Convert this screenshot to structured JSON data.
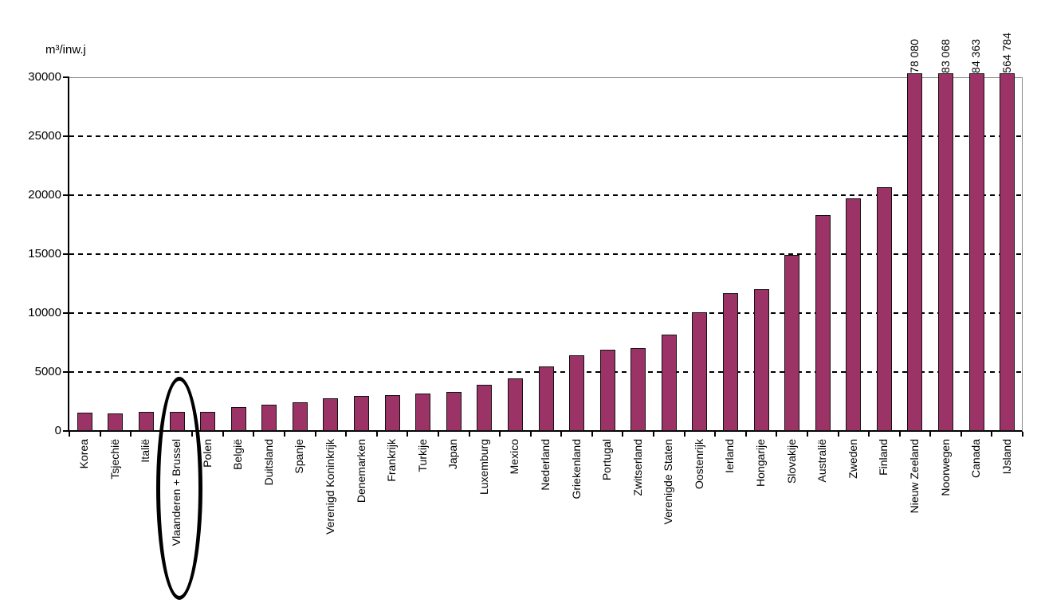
{
  "chart_data": {
    "type": "bar",
    "title": "",
    "xlabel": "",
    "ylabel": "m³/inw.j",
    "ylim": [
      0,
      30000
    ],
    "yticks": [
      0,
      5000,
      10000,
      15000,
      20000,
      25000,
      30000
    ],
    "ytick_labels": [
      "0",
      "5000",
      "10000",
      "15000",
      "20000",
      "25000",
      "30000"
    ],
    "grid": "horizontal-dashed",
    "legend": "none",
    "bar_color": "#9B3367",
    "bars": [
      {
        "category": "Korea",
        "value": 1550
      },
      {
        "category": "Tsjechië",
        "value": 1500
      },
      {
        "category": "Italië",
        "value": 1650
      },
      {
        "category": "Vlaanderen + Brussel",
        "value": 1600,
        "highlighted": true
      },
      {
        "category": "Polen",
        "value": 1600
      },
      {
        "category": "België",
        "value": 2000
      },
      {
        "category": "Duitsland",
        "value": 2200
      },
      {
        "category": "Spanje",
        "value": 2450
      },
      {
        "category": "Verenigd Koninkrijk",
        "value": 2800
      },
      {
        "category": "Denemarken",
        "value": 2950
      },
      {
        "category": "Frankrijk",
        "value": 3050
      },
      {
        "category": "Turkije",
        "value": 3150
      },
      {
        "category": "Japan",
        "value": 3300
      },
      {
        "category": "Luxemburg",
        "value": 3900
      },
      {
        "category": "Mexico",
        "value": 4450
      },
      {
        "category": "Nederland",
        "value": 5500
      },
      {
        "category": "Griekenland",
        "value": 6450
      },
      {
        "category": "Portugal",
        "value": 6900
      },
      {
        "category": "Zwitserland",
        "value": 7000
      },
      {
        "category": "Verenigde Staten",
        "value": 8150
      },
      {
        "category": "Oostenrijk",
        "value": 10100
      },
      {
        "category": "Ierland",
        "value": 11700
      },
      {
        "category": "Hongarije",
        "value": 12000
      },
      {
        "category": "Slovakije",
        "value": 14900
      },
      {
        "category": "Australië",
        "value": 18300
      },
      {
        "category": "Zweden",
        "value": 19700
      },
      {
        "category": "Finland",
        "value": 20700
      },
      {
        "category": "Nieuw Zeeland",
        "value": 78080,
        "value_label": "78 080"
      },
      {
        "category": "Noorwegen",
        "value": 83068,
        "value_label": "83 068"
      },
      {
        "category": "Canada",
        "value": 84363,
        "value_label": "84 363"
      },
      {
        "category": "IJsland",
        "value": 564784,
        "value_label": "564 784"
      }
    ],
    "annotation": {
      "shape": "ellipse",
      "target": "Vlaanderen + Brussel",
      "color": "#000000"
    }
  }
}
